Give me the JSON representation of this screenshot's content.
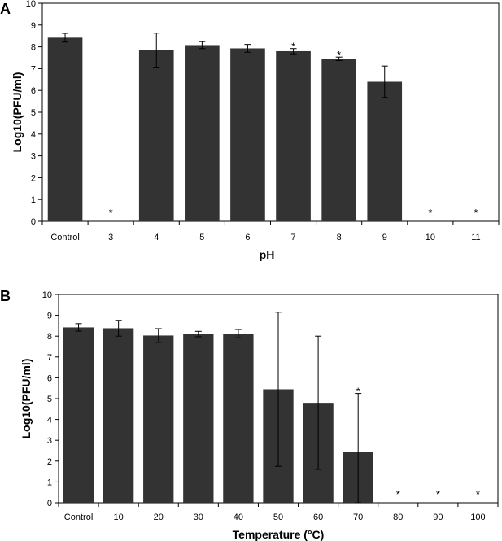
{
  "chart_data": [
    {
      "type": "bar",
      "panel_label": "A",
      "title": "",
      "xlabel": "pH",
      "ylabel": "Log10(PFU/ml)",
      "ylim": [
        0,
        10
      ],
      "yticks": [
        0,
        1,
        2,
        3,
        4,
        5,
        6,
        7,
        8,
        9,
        10
      ],
      "categories": [
        "Control",
        "3",
        "4",
        "5",
        "6",
        "7",
        "8",
        "9",
        "10",
        "11"
      ],
      "values": [
        8.42,
        0,
        7.85,
        8.08,
        7.93,
        7.8,
        7.45,
        6.4,
        0,
        0
      ],
      "errors": [
        0.2,
        0,
        0.78,
        0.16,
        0.18,
        0.12,
        0.08,
        0.72,
        0,
        0
      ],
      "significant": [
        false,
        true,
        false,
        false,
        false,
        true,
        true,
        false,
        true,
        true
      ],
      "significance_marker": "*",
      "bar_color": "#333333",
      "grid": false
    },
    {
      "type": "bar",
      "panel_label": "B",
      "title": "",
      "xlabel": "Temperature (°C)",
      "ylabel": "Log10(PFU/ml)",
      "ylim": [
        0,
        10
      ],
      "yticks": [
        0,
        1,
        2,
        3,
        4,
        5,
        6,
        7,
        8,
        9,
        10
      ],
      "categories": [
        "Control",
        "10",
        "20",
        "30",
        "40",
        "50",
        "60",
        "70",
        "80",
        "90",
        "100"
      ],
      "values": [
        8.42,
        8.38,
        8.03,
        8.1,
        8.12,
        5.45,
        4.8,
        2.45,
        0,
        0,
        0
      ],
      "errors": [
        0.18,
        0.38,
        0.33,
        0.13,
        0.2,
        3.7,
        3.2,
        2.8,
        0,
        0,
        0
      ],
      "significant": [
        false,
        false,
        false,
        false,
        false,
        false,
        false,
        true,
        true,
        true,
        true
      ],
      "significance_marker": "*",
      "bar_color": "#333333",
      "grid": false
    }
  ]
}
